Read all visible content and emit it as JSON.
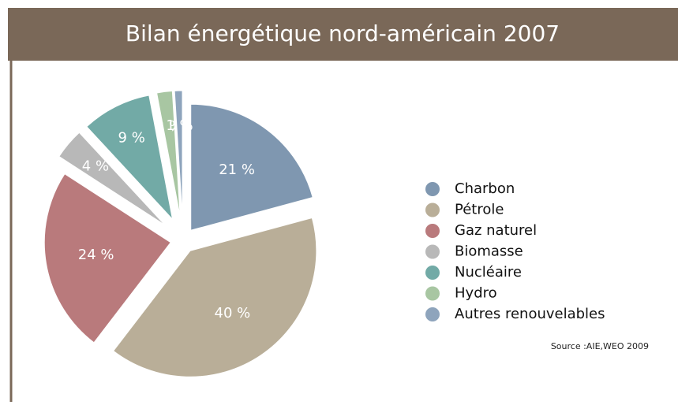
{
  "chart_data": {
    "type": "pie",
    "title": "Bilan énergétique nord-américain 2007",
    "categories": [
      "Charbon",
      "Pétrole",
      "Gaz naturel",
      "Biomasse",
      "Nucléaire",
      "Hydro",
      "Autres renouvelables"
    ],
    "values": [
      21,
      40,
      24,
      4,
      9,
      2,
      1
    ],
    "value_labels": [
      "21 %",
      "40 %",
      "24 %",
      "4 %",
      "9 %",
      "2 %",
      "1 %"
    ],
    "colors": [
      "#7f97b0",
      "#b9ae98",
      "#b97a7c",
      "#b8b8b8",
      "#72aaa6",
      "#a8c6a2",
      "#8ea4bc"
    ],
    "legend": "right",
    "source": "Source :AIE,WEO 2009"
  }
}
